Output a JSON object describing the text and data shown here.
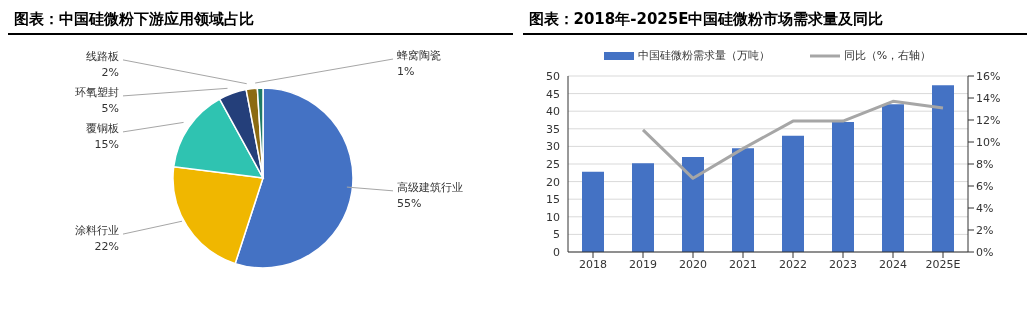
{
  "chart_data": [
    {
      "type": "pie",
      "title": "图表：中国硅微粉下游应用领域占比",
      "categories": [
        "高级建筑行业",
        "涂料行业",
        "覆铜板",
        "环氧塑封",
        "线路板",
        "蜂窝陶瓷"
      ],
      "values": [
        55,
        22,
        15,
        5,
        2,
        1
      ],
      "value_labels": [
        "55%",
        "22%",
        "15%",
        "5%",
        "2%",
        "1%"
      ],
      "colors": [
        "#4472c4",
        "#f0b700",
        "#2fc3b1",
        "#243f7a",
        "#8b6a12",
        "#1e7a66"
      ]
    },
    {
      "type": "bar",
      "title": "图表：2018年-2025E中国硅微粉市场需求量及同比",
      "categories": [
        "2018",
        "2019",
        "2020",
        "2021",
        "2022",
        "2023",
        "2024",
        "2025E"
      ],
      "series": [
        {
          "name": "中国硅微粉需求量（万吨）",
          "type": "bar",
          "color": "#4472c4",
          "values": [
            22.8,
            25.2,
            27.0,
            29.5,
            33.0,
            36.9,
            42.0,
            47.4
          ]
        },
        {
          "name": "同比（%，右轴）",
          "type": "line",
          "axis": "y2",
          "color": "#a6a6a6",
          "values": [
            null,
            11.1,
            6.7,
            9.4,
            11.9,
            11.9,
            13.7,
            13.1
          ]
        }
      ],
      "ylim": [
        0,
        50
      ],
      "yticks": [
        0,
        5,
        10,
        15,
        20,
        25,
        30,
        35,
        40,
        45,
        50
      ],
      "y2lim": [
        0,
        16
      ],
      "y2ticks": [
        {
          "value": 0,
          "label": "0%"
        },
        {
          "value": 2,
          "label": "2%"
        },
        {
          "value": 4,
          "label": "4%"
        },
        {
          "value": 6,
          "label": "6%"
        },
        {
          "value": 8,
          "label": "8%"
        },
        {
          "value": 10,
          "label": "10%"
        },
        {
          "value": 12,
          "label": "12%"
        },
        {
          "value": 14,
          "label": "14%"
        },
        {
          "value": 16,
          "label": "16%"
        }
      ],
      "grid": "y",
      "legend": "top",
      "marker": "none"
    }
  ]
}
